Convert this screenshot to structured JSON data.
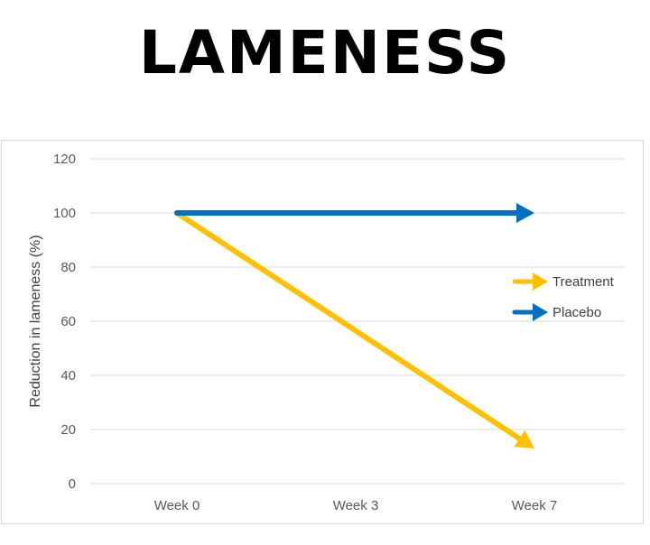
{
  "title": "LAMENESS",
  "chart_data": {
    "type": "line",
    "title": "LAMENESS",
    "ylabel": "Reduction in lameness (%)",
    "xlabel": "",
    "categories": [
      "Week 0",
      "Week 3",
      "Week 7"
    ],
    "ylim": [
      0,
      120
    ],
    "yticks": [
      "0",
      "20",
      "40",
      "60",
      "80",
      "100",
      "120"
    ],
    "grid": true,
    "legend_position": "right",
    "series": [
      {
        "name": "Treatment",
        "color": "#ffc000",
        "points": [
          {
            "x": "Week 0",
            "y": 100
          },
          {
            "x": "Week 7",
            "y": 15
          }
        ]
      },
      {
        "name": "Placebo",
        "color": "#0070c0",
        "points": [
          {
            "x": "Week 0",
            "y": 100
          },
          {
            "x": "Week 7",
            "y": 100
          }
        ]
      }
    ]
  }
}
